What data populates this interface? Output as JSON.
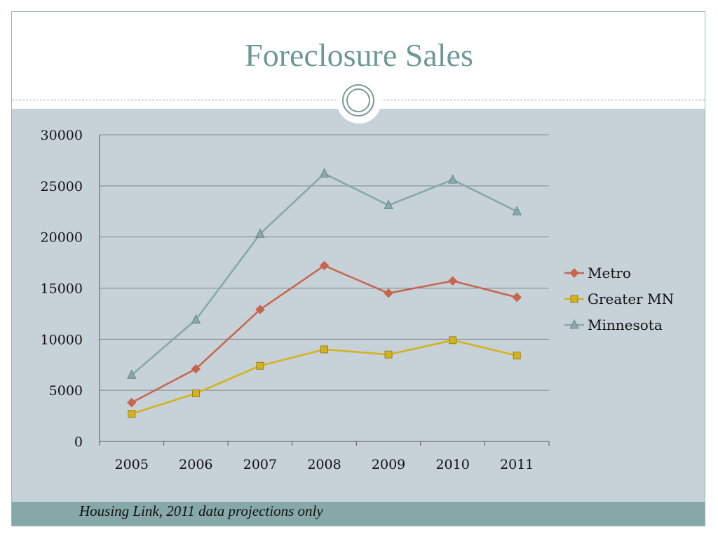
{
  "slide": {
    "title": "Foreclosure Sales",
    "source": "Housing Link, 2011 data projections only"
  },
  "chart_data": {
    "type": "line",
    "title": "",
    "xlabel": "",
    "ylabel": "",
    "categories": [
      "2005",
      "2006",
      "2007",
      "2008",
      "2009",
      "2010",
      "2011"
    ],
    "ylim": [
      0,
      30000
    ],
    "yticks": [
      "0",
      "5000",
      "10000",
      "15000",
      "20000",
      "25000",
      "30000"
    ],
    "grid": "horizontal",
    "legend_position": "right",
    "series": [
      {
        "name": "Metro",
        "color": "#c8654e",
        "marker": "diamond",
        "values": [
          3800,
          7100,
          12900,
          17200,
          14500,
          15700,
          14100
        ]
      },
      {
        "name": "Greater MN",
        "color": "#d4b31a",
        "marker": "square",
        "values": [
          2700,
          4700,
          7400,
          9000,
          8500,
          9900,
          8400
        ]
      },
      {
        "name": "Minnesota",
        "color": "#86a8a8",
        "marker": "triangle",
        "values": [
          6500,
          11900,
          20300,
          26200,
          23100,
          25600,
          22500
        ]
      }
    ]
  }
}
